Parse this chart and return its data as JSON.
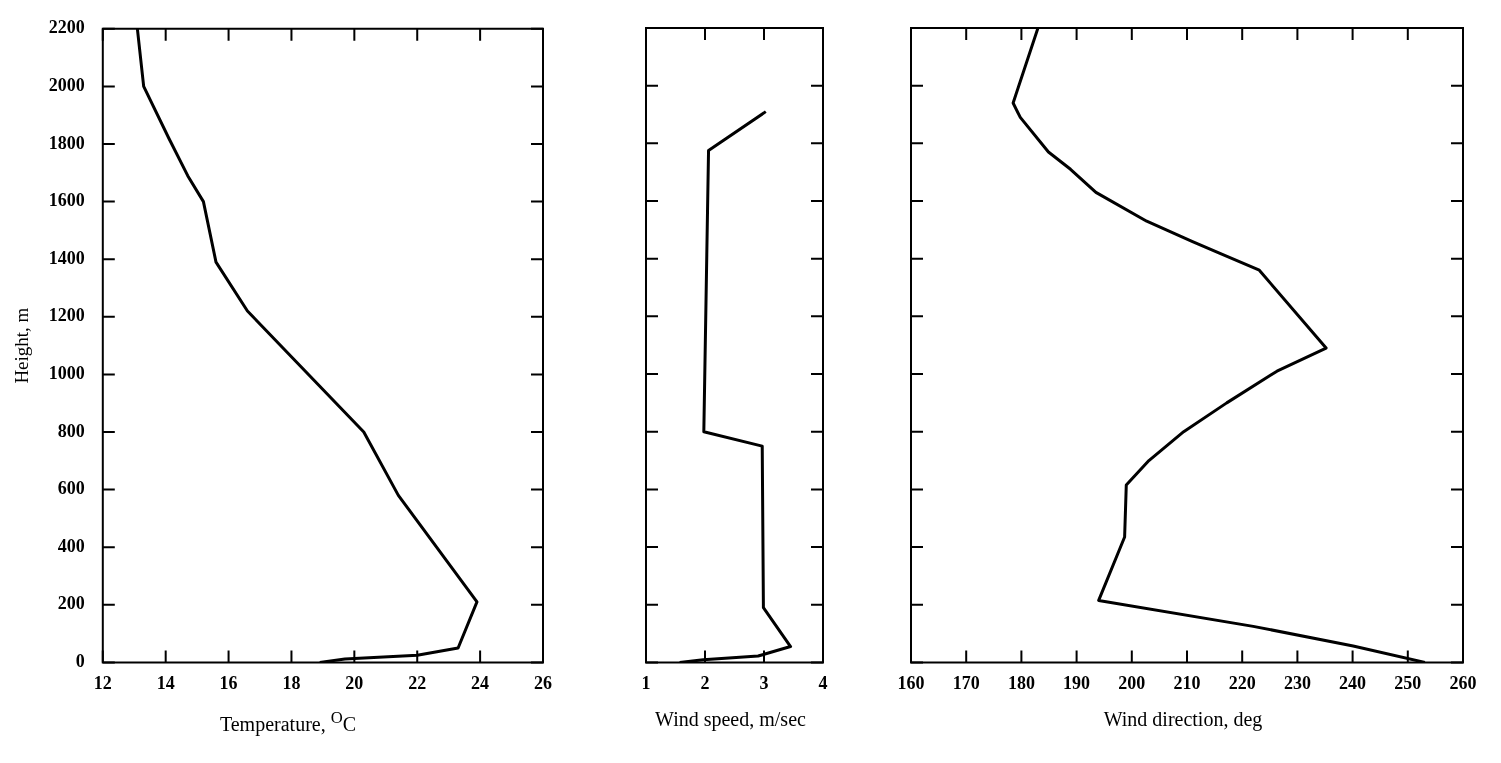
{
  "chart_data": [
    {
      "type": "line",
      "xlabel": "Temperature, $^{O}$C",
      "ylabel": "Height, m",
      "xlim": [
        12,
        26
      ],
      "xticks": [
        12,
        14,
        16,
        18,
        20,
        22,
        24,
        26
      ],
      "ylim": [
        0,
        2200
      ],
      "yticks": [
        0,
        200,
        400,
        600,
        800,
        1000,
        1200,
        1400,
        1600,
        1800,
        2000,
        2200
      ],
      "marker": "none",
      "series": [
        {
          "color": "#000000",
          "x": [
            13.1,
            13.3,
            14.1,
            14.7,
            15.2,
            15.6,
            16.6,
            20.3,
            21.4,
            23.9,
            23.3,
            22.0,
            19.7,
            18.9
          ],
          "values": [
            2200,
            2000,
            1820,
            1690,
            1600,
            1390,
            1220,
            800,
            580,
            210,
            50,
            25,
            12,
            0
          ]
        }
      ]
    },
    {
      "type": "line",
      "xlabel": "Wind speed, m/sec",
      "xlim": [
        1,
        4
      ],
      "xticks": [
        1,
        2,
        3,
        4
      ],
      "ylim": [
        0,
        2200
      ],
      "yticks": [
        0,
        200,
        400,
        600,
        800,
        1000,
        1200,
        1400,
        1600,
        1800,
        2000,
        2200
      ],
      "tick_labels": "x",
      "marker": "none",
      "series": [
        {
          "color": "#000000",
          "x": [
            3.03,
            2.06,
            1.98,
            2.97,
            2.99,
            3.45,
            2.9,
            1.97,
            1.57
          ],
          "values": [
            1910,
            1775,
            800,
            750,
            190,
            55,
            22,
            9,
            0
          ]
        }
      ]
    },
    {
      "type": "line",
      "xlabel": "Wind direction, deg",
      "xlim": [
        160,
        260
      ],
      "xticks": [
        160,
        170,
        180,
        190,
        200,
        210,
        220,
        230,
        240,
        250,
        260
      ],
      "ylim": [
        0,
        2200
      ],
      "yticks": [
        0,
        200,
        400,
        600,
        800,
        1000,
        1200,
        1400,
        1600,
        1800,
        2000,
        2200
      ],
      "tick_labels": "x",
      "marker": "none",
      "series": [
        {
          "color": "#000000",
          "x": [
            183,
            178.5,
            179.8,
            184.9,
            188.9,
            193.5,
            202.7,
            210.9,
            223.1,
            235.2,
            226.3,
            217.2,
            209.4,
            203.1,
            199,
            198.7,
            194,
            222,
            240.1,
            253.1
          ],
          "values": [
            2200,
            1940,
            1890,
            1770,
            1710,
            1630,
            1530,
            1460,
            1360,
            1090,
            1010,
            900,
            800,
            700,
            615,
            435,
            215,
            125,
            57,
            0
          ]
        }
      ]
    }
  ]
}
